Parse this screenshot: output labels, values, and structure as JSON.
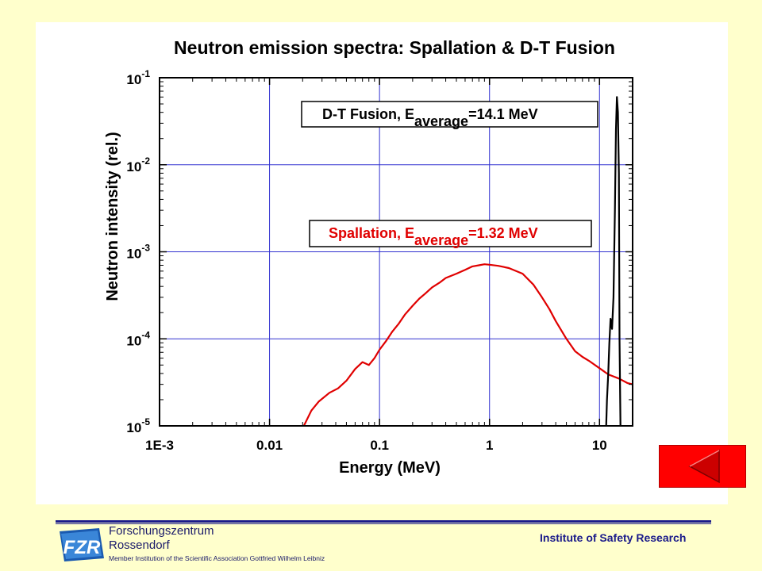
{
  "chart_data": {
    "type": "line",
    "title": "Neutron emission spectra: Spallation & D-T Fusion",
    "xlabel": "Energy (MeV)",
    "ylabel": "Neutron intensity (rel.)",
    "xscale": "log",
    "yscale": "log",
    "xlim": [
      0.001,
      20
    ],
    "ylim": [
      1e-05,
      0.1
    ],
    "x_ticks": [
      "1E-3",
      "0.01",
      "0.1",
      "1",
      "10"
    ],
    "y_ticks": [
      {
        "base": "10",
        "exp": "-1"
      },
      {
        "base": "10",
        "exp": "-2"
      },
      {
        "base": "10",
        "exp": "-3"
      },
      {
        "base": "10",
        "exp": "-4"
      },
      {
        "base": "10",
        "exp": "-5"
      }
    ],
    "grid": true,
    "series": [
      {
        "color": "#E00000",
        "x": [
          0.0205,
          0.024,
          0.028,
          0.035,
          0.042,
          0.05,
          0.06,
          0.07,
          0.08,
          0.09,
          0.1,
          0.115,
          0.13,
          0.15,
          0.17,
          0.2,
          0.23,
          0.26,
          0.3,
          0.35,
          0.4,
          0.5,
          0.6,
          0.7,
          0.8,
          0.9,
          1.0,
          1.2,
          1.5,
          2.0,
          2.5,
          3.0,
          3.5,
          4.0,
          5.0,
          6.0,
          7.0,
          8.0,
          10.0,
          12.0,
          15.0,
          18.0,
          20.0
        ],
        "y": [
          1e-05,
          1.5e-05,
          1.9e-05,
          2.4e-05,
          2.7e-05,
          3.3e-05,
          4.5e-05,
          5.4e-05,
          5e-05,
          6e-05,
          7.5e-05,
          9.5e-05,
          0.00012,
          0.00015,
          0.00019,
          0.00024,
          0.00029,
          0.00033,
          0.00039,
          0.00044,
          0.0005,
          0.00056,
          0.00062,
          0.00068,
          0.0007,
          0.00072,
          0.00071,
          0.00069,
          0.00065,
          0.00056,
          0.00042,
          0.0003,
          0.00022,
          0.00016,
          0.0001,
          7.2e-05,
          6.2e-05,
          5.6e-05,
          4.6e-05,
          3.9e-05,
          3.5e-05,
          3.1e-05,
          3e-05
        ]
      },
      {
        "color": "#000000",
        "x": [
          11.5,
          11.7,
          12.0,
          12.3,
          12.6,
          13.0,
          13.4,
          13.8,
          14.1,
          14.4,
          14.7,
          15.0,
          15.2,
          15.5
        ],
        "y": [
          1e-05,
          2e-05,
          4e-05,
          9e-05,
          0.00017,
          0.00013,
          0.0003,
          0.003,
          0.025,
          0.06,
          0.04,
          0.008,
          0.0001,
          1e-05
        ]
      }
    ],
    "annotations": [
      {
        "prefix": "D-T Fusion, E",
        "sub": "average",
        "suffix": "=14.1 MeV",
        "color": "#000000"
      },
      {
        "prefix": "Spallation, E",
        "sub": "average",
        "suffix": "=1.32 MeV",
        "color": "#E00000"
      }
    ]
  },
  "footer": {
    "org_name": "Forschungszentrum",
    "org_sub": "Rossendorf",
    "member_text": "Member Institution of the Scientific Association Gottfried Wilhelm Leibniz",
    "institute": "Institute of Safety Research",
    "logo_text": "FZR"
  },
  "nav": {
    "back_icon": "triangle-left-icon"
  }
}
